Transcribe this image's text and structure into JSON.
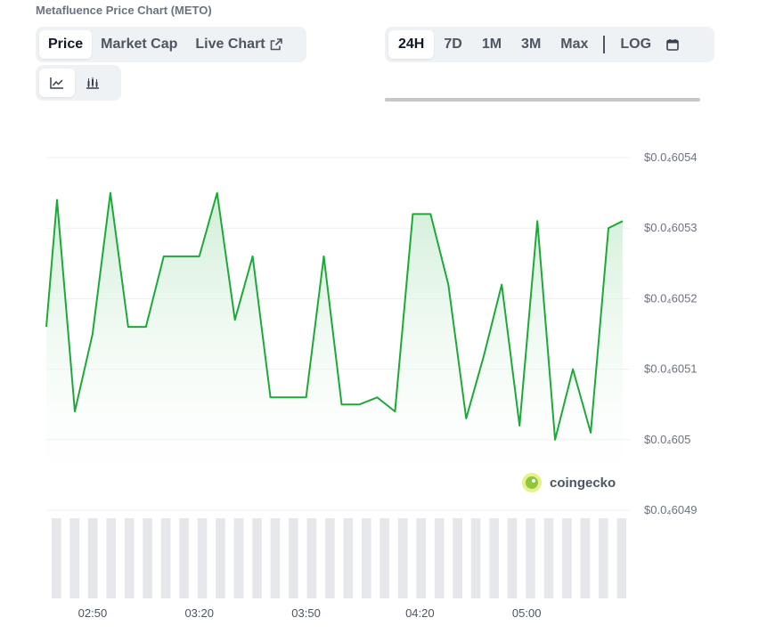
{
  "header": {
    "title": "Metafluence Price Chart (METO)"
  },
  "tabs": [
    {
      "label": "Price",
      "active": true
    },
    {
      "label": "Market Cap",
      "active": false
    },
    {
      "label": "Live Chart",
      "active": false,
      "icon": "external-link-icon"
    }
  ],
  "view_toggle": [
    {
      "icon": "line-chart-icon",
      "active": true
    },
    {
      "icon": "candlestick-chart-icon",
      "active": false
    }
  ],
  "ranges": [
    {
      "label": "24H",
      "active": true
    },
    {
      "label": "7D",
      "active": false
    },
    {
      "label": "1M",
      "active": false
    },
    {
      "label": "3M",
      "active": false
    },
    {
      "label": "Max",
      "active": false
    },
    {
      "label": "LOG",
      "active": false
    }
  ],
  "calendar_icon": "calendar-icon",
  "watermark": "coingecko",
  "colors": {
    "line": "#1fa83a",
    "fill_top": "#d8f2dd",
    "grid": "#edf0f3",
    "volume": "#e5e7eb"
  },
  "chart_data": {
    "type": "area",
    "y_tick_labels": [
      "$0.0₄6054",
      "$0.0₄6053",
      "$0.0₄6052",
      "$0.0₄6051",
      "$0.0₄605",
      "$0.0₄6049"
    ],
    "y_ticks": [
      6.054,
      6.053,
      6.052,
      6.051,
      6.05,
      6.049
    ],
    "ylim": [
      6.049,
      6.054
    ],
    "y_unit_note": "values in 1e-5 USD",
    "x_tick_labels": [
      "02:50",
      "03:20",
      "03:50",
      "04:20",
      "05:00"
    ],
    "x_ticks": [
      165,
      195,
      225,
      257,
      287
    ],
    "xlim": [
      152,
      316
    ],
    "points": [
      [
        152,
        6.0516
      ],
      [
        155,
        6.0534
      ],
      [
        160,
        6.0504
      ],
      [
        165,
        6.0515
      ],
      [
        170,
        6.0535
      ],
      [
        175,
        6.0516
      ],
      [
        180,
        6.0516
      ],
      [
        185,
        6.0526
      ],
      [
        190,
        6.0526
      ],
      [
        195,
        6.0526
      ],
      [
        200,
        6.0535
      ],
      [
        205,
        6.0517
      ],
      [
        210,
        6.0526
      ],
      [
        215,
        6.0506
      ],
      [
        220,
        6.0506
      ],
      [
        225,
        6.0506
      ],
      [
        230,
        6.0526
      ],
      [
        235,
        6.0505
      ],
      [
        240,
        6.0505
      ],
      [
        245,
        6.0506
      ],
      [
        250,
        6.0504
      ],
      [
        255,
        6.0532
      ],
      [
        260,
        6.0532
      ],
      [
        265,
        6.0522
      ],
      [
        270,
        6.0503
      ],
      [
        275,
        6.0512
      ],
      [
        280,
        6.0522
      ],
      [
        285,
        6.0502
      ],
      [
        290,
        6.0531
      ],
      [
        295,
        6.05
      ],
      [
        300,
        6.051
      ],
      [
        305,
        6.0501
      ],
      [
        310,
        6.053
      ],
      [
        314,
        6.0531
      ]
    ],
    "volume_bars": 32
  }
}
